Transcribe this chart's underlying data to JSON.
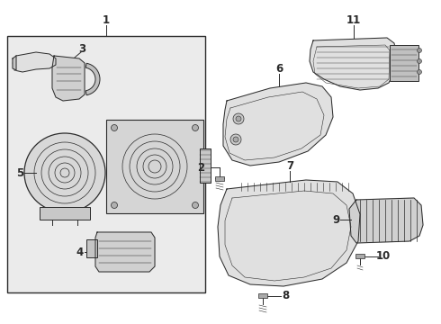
{
  "bg_color": "#ffffff",
  "line_color": "#2a2a2a",
  "box_bg": "#ebebeb",
  "part_fill": "#e0e0e0",
  "fig_width": 4.9,
  "fig_height": 3.6,
  "dpi": 100
}
